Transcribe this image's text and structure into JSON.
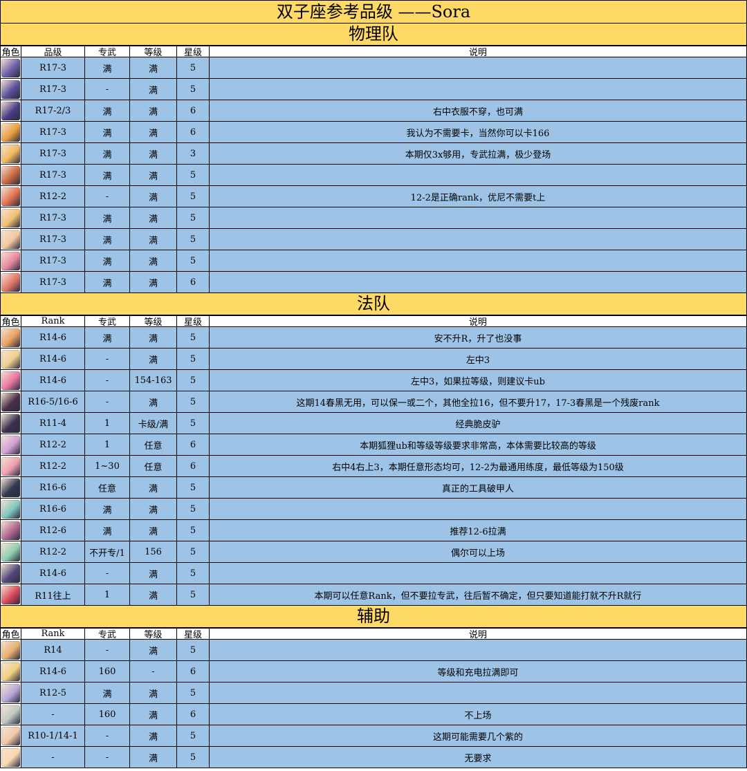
{
  "title": "双子座参考品级 ——Sora",
  "sections": [
    {
      "name": "物理队",
      "headers": [
        "角色",
        "品级",
        "专武",
        "等级",
        "星级",
        "说明"
      ],
      "rows": [
        {
          "avatar": "#6d5fa8",
          "rank": "R17-3",
          "weapon": "满",
          "level": "满",
          "star": "5",
          "note": ""
        },
        {
          "avatar": "#5a4f9e",
          "rank": "R17-3",
          "weapon": "-",
          "level": "满",
          "star": "5",
          "note": ""
        },
        {
          "avatar": "#4a3c88",
          "rank": "R17-2/3",
          "weapon": "满",
          "level": "满",
          "star": "6",
          "note": "右中衣服不穿，也可满"
        },
        {
          "avatar": "#e8a040",
          "rank": "R17-3",
          "weapon": "满",
          "level": "满",
          "star": "6",
          "note": "我认为不需要卡，当然你可以卡166"
        },
        {
          "avatar": "#f2b860",
          "rank": "R17-3",
          "weapon": "满",
          "level": "满",
          "star": "3",
          "note": "本期仅3x够用，专武拉满，极少登场"
        },
        {
          "avatar": "#c86840",
          "rank": "R17-3",
          "weapon": "满",
          "level": "满",
          "star": "5",
          "note": ""
        },
        {
          "avatar": "#e07050",
          "rank": "R12-2",
          "weapon": "-",
          "level": "满",
          "star": "5",
          "note": "12-2是正确rank，优尼不需要t上"
        },
        {
          "avatar": "#f0c070",
          "rank": "R17-3",
          "weapon": "满",
          "level": "满",
          "star": "5",
          "note": ""
        },
        {
          "avatar": "#f3c9a0",
          "rank": "R17-3",
          "weapon": "满",
          "level": "满",
          "star": "5",
          "note": ""
        },
        {
          "avatar": "#e88aa0",
          "rank": "R17-3",
          "weapon": "满",
          "level": "满",
          "star": "5",
          "note": ""
        },
        {
          "avatar": "#e07868",
          "rank": "R17-3",
          "weapon": "满",
          "level": "满",
          "star": "6",
          "note": ""
        }
      ]
    },
    {
      "name": "法队",
      "headers": [
        "角色",
        "Rank",
        "专武",
        "等级",
        "星级",
        "说明"
      ],
      "rows": [
        {
          "avatar": "#e8a060",
          "rank": "R14-6",
          "weapon": "满",
          "level": "满",
          "star": "5",
          "note": "安不升R，升了也没事"
        },
        {
          "avatar": "#f0d090",
          "rank": "R14-6",
          "weapon": "-",
          "level": "满",
          "star": "5",
          "note": "左中3"
        },
        {
          "avatar": "#e878a0",
          "rank": "R14-6",
          "weapon": "-",
          "level": "154-163",
          "star": "5",
          "note": "左中3，如果拉等级，则建议卡ub"
        },
        {
          "avatar": "#4a3048",
          "rank": "R16-5/16-6",
          "weapon": "-",
          "level": "满",
          "star": "5",
          "note": "这期14春黑无用，可以保一或二个，其他全拉16，但不要升17，17-3春黑是一个残废rank"
        },
        {
          "avatar": "#3a3050",
          "rank": "R11-4",
          "weapon": "1",
          "level": "卡级/满",
          "star": "5",
          "note": "经典脆皮驴"
        },
        {
          "avatar": "#d0a0d8",
          "rank": "R12-2",
          "weapon": "1",
          "level": "任意",
          "star": "6",
          "note": "本期狐狸ub和等级等级要求非常高，本体需要比较高的等级"
        },
        {
          "avatar": "#f0a0b0",
          "rank": "R12-2",
          "weapon": "1~30",
          "level": "任意",
          "star": "6",
          "note": "右中4右上3，本期任意形态均可，12-2为最通用练度，最低等级为150级"
        },
        {
          "avatar": "#303850",
          "rank": "R16-6",
          "weapon": "任意",
          "level": "满",
          "star": "5",
          "note": "真正的工具破甲人"
        },
        {
          "avatar": "#80c8c0",
          "rank": "R16-6",
          "weapon": "满",
          "level": "满",
          "star": "5",
          "note": ""
        },
        {
          "avatar": "#b06890",
          "rank": "R12-6",
          "weapon": "满",
          "level": "满",
          "star": "5",
          "note": "推荐12-6拉满"
        },
        {
          "avatar": "#90d0b0",
          "rank": "R12-2",
          "weapon": "不开专/1",
          "level": "156",
          "star": "5",
          "note": "偶尔可以上场"
        },
        {
          "avatar": "#504878",
          "rank": "R14-6",
          "weapon": "-",
          "level": "满",
          "star": "5",
          "note": ""
        },
        {
          "avatar": "#d84858",
          "rank": "R11往上",
          "weapon": "1",
          "level": "满",
          "star": "5",
          "note": "本期可以任意Rank，但不要拉专武，往后暂不确定，但只要知道能打就不升R就行"
        }
      ]
    },
    {
      "name": "辅助",
      "headers": [
        "角色",
        "Rank",
        "专武",
        "等级",
        "星级",
        "说明"
      ],
      "rows": [
        {
          "avatar": "#e8b070",
          "rank": "R14",
          "weapon": "-",
          "level": "满",
          "star": "5",
          "note": ""
        },
        {
          "avatar": "#f0d080",
          "rank": "R14-6",
          "weapon": "160",
          "level": "-",
          "star": "6",
          "note": "等级和充电拉满即可"
        },
        {
          "avatar": "#b8a8d8",
          "rank": "R12-5",
          "weapon": "满",
          "level": "满",
          "star": "5",
          "note": ""
        },
        {
          "avatar": "#c0c8c0",
          "rank": "-",
          "weapon": "160",
          "level": "满",
          "star": "6",
          "note": "不上场"
        },
        {
          "avatar": "#f0c8a8",
          "rank": "R10-1/14-1",
          "weapon": "-",
          "level": "满",
          "star": "5",
          "note": "这期可能需要几个紫的"
        },
        {
          "avatar": "#f8d8b0",
          "rank": "-",
          "weapon": "-",
          "level": "满",
          "star": "5",
          "note": "无要求"
        }
      ]
    }
  ]
}
